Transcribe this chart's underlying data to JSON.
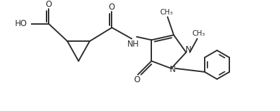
{
  "bg_color": "#ffffff",
  "line_color": "#2a2a2a",
  "line_width": 1.4,
  "font_size": 8.5,
  "figsize": [
    4.1,
    1.62
  ],
  "dpi": 100,
  "xlim": [
    0.0,
    10.5
  ],
  "ylim": [
    0.0,
    4.2
  ]
}
